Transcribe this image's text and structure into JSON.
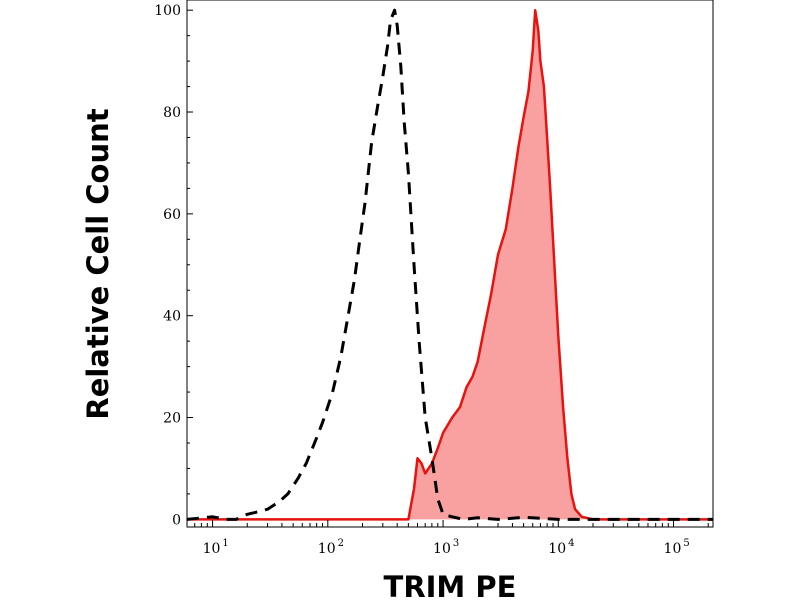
{
  "chart_data": {
    "type": "area",
    "xlabel": "TRIM PE",
    "ylabel": "Relative Cell Count",
    "x_scale": "log",
    "xlim": [
      6,
      220000
    ],
    "ylim": [
      -1.5,
      102
    ],
    "y_ticks": [
      "0",
      "20",
      "40",
      "60",
      "80",
      "100"
    ],
    "y_tick_values": [
      0,
      20,
      40,
      60,
      80,
      100
    ],
    "x_ticks": [
      {
        "base": "10",
        "exp": "1",
        "value": 10
      },
      {
        "base": "10",
        "exp": "2",
        "value": 100
      },
      {
        "base": "10",
        "exp": "3",
        "value": 1000
      },
      {
        "base": "10",
        "exp": "4",
        "value": 10000
      },
      {
        "base": "10",
        "exp": "5",
        "value": 100000
      }
    ],
    "grid": false,
    "series": [
      {
        "style": "dashed",
        "color": "#000000",
        "x": [
          6,
          10,
          13,
          16,
          20,
          25,
          30,
          38,
          45,
          55,
          65,
          80,
          90,
          110,
          130,
          150,
          170,
          190,
          210,
          240,
          270,
          300,
          330,
          350,
          380,
          400,
          430,
          460,
          500,
          560,
          620,
          700,
          800,
          900,
          1000,
          1200,
          1500,
          2000,
          3000,
          5000,
          10000,
          220000
        ],
        "y": [
          0,
          0.5,
          0,
          0,
          1,
          1.5,
          2,
          3.5,
          5,
          8,
          11,
          16,
          19,
          25,
          32,
          40,
          47,
          55,
          62,
          74,
          81,
          87,
          93,
          98,
          100,
          97,
          89,
          78,
          68,
          50,
          35,
          20,
          12,
          4,
          1,
          0.5,
          0,
          0.3,
          0,
          0.4,
          0,
          0
        ]
      },
      {
        "style": "filled",
        "color": "#e8120f",
        "fill": "#f9a0a0",
        "x": [
          6,
          500,
          560,
          600,
          650,
          700,
          800,
          900,
          1000,
          1200,
          1400,
          1600,
          1800,
          2000,
          2300,
          2600,
          3000,
          3500,
          4000,
          4500,
          5000,
          5500,
          6000,
          6300,
          6700,
          7000,
          7500,
          8000,
          8500,
          9000,
          10000,
          11000,
          12000,
          13000,
          14000,
          16000,
          20000,
          25000,
          220000
        ],
        "y": [
          0,
          0,
          6,
          12,
          11,
          9,
          11,
          14,
          17,
          20,
          22,
          26,
          28,
          31,
          38,
          44,
          52,
          57,
          65,
          73,
          79,
          84,
          92,
          100,
          96,
          90,
          85,
          75,
          65,
          55,
          36,
          22,
          12,
          5,
          2,
          0.5,
          0,
          0,
          0
        ]
      }
    ]
  }
}
